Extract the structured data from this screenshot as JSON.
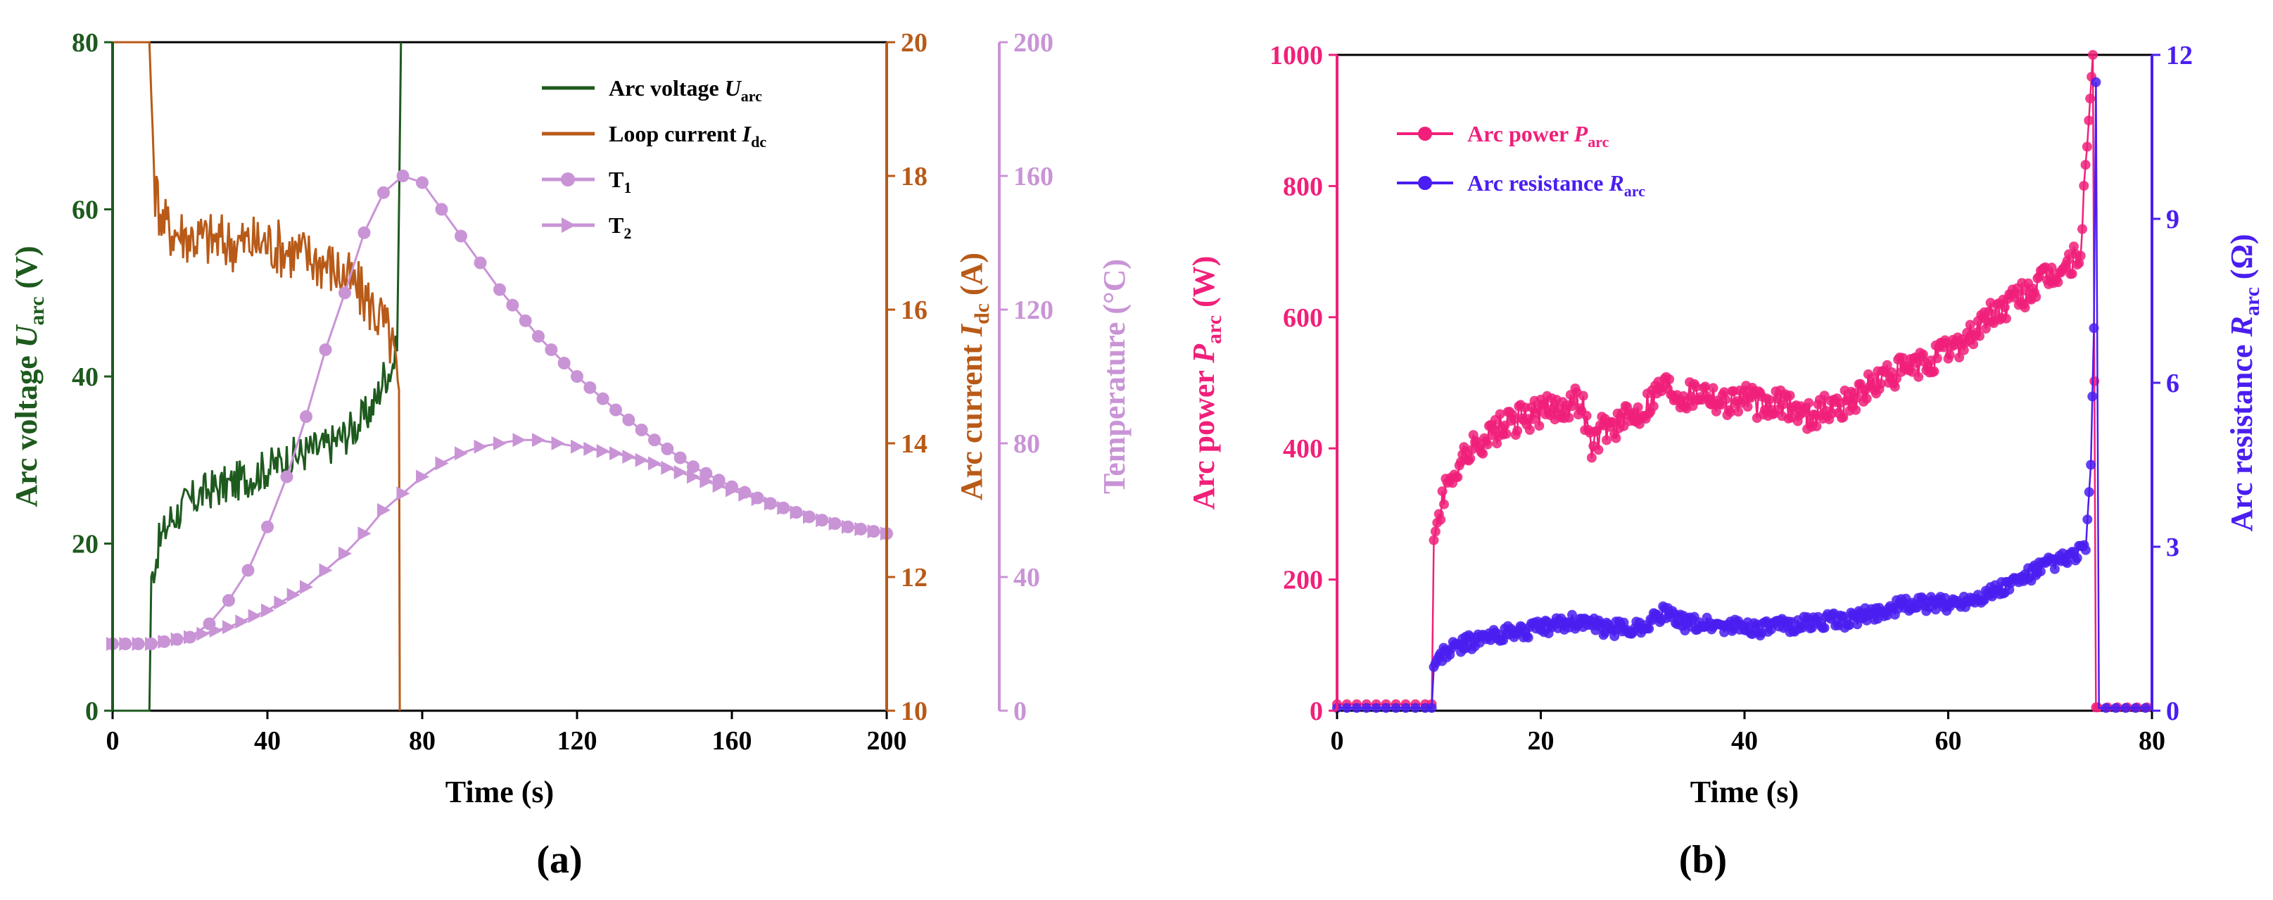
{
  "colors": {
    "voltage": "#1e5a1e",
    "current": "#b85a18",
    "temperature": "#c994d6",
    "power": "#f0207a",
    "resistance": "#4a1ef0",
    "axis": "#000000"
  },
  "chart_data": [
    {
      "panel": "(a)",
      "type": "line",
      "xlabel": "Time (s)",
      "xlim": [
        0,
        200
      ],
      "xticks": [
        "0",
        "40",
        "80",
        "120",
        "160",
        "200"
      ],
      "axes": {
        "left": {
          "label_main": "Arc voltage ",
          "label_sym": "U",
          "label_sub": "arc",
          "label_unit": " (V)",
          "ylim": [
            0,
            80
          ],
          "ticks": [
            "0",
            "20",
            "40",
            "60",
            "80"
          ]
        },
        "right1": {
          "label_main": "Arc current ",
          "label_sym": "I",
          "label_sub": "dc",
          "label_unit": " (A)",
          "ylim": [
            10,
            20
          ],
          "ticks": [
            "10",
            "12",
            "14",
            "16",
            "18",
            "20"
          ]
        },
        "right2": {
          "label": "Temperature (°C)",
          "ylim": [
            0,
            200
          ],
          "ticks": [
            "0",
            "40",
            "80",
            "120",
            "160",
            "200"
          ]
        }
      },
      "legend": [
        {
          "text": "Arc voltage ",
          "sym": "U",
          "sub": "arc"
        },
        {
          "text": "Loop current ",
          "sym": "I",
          "sub": "dc"
        },
        {
          "text": "T",
          "sym": "",
          "sub": "1"
        },
        {
          "text": "T",
          "sym": "",
          "sub": "2"
        }
      ],
      "series": [
        {
          "name": "Arc voltage Uarc",
          "axis": "left",
          "x": [
            0,
            9.5,
            10,
            12,
            15,
            20,
            25,
            30,
            35,
            40,
            45,
            50,
            55,
            60,
            65,
            68,
            70,
            72,
            73.5,
            74,
            74.5
          ],
          "y": [
            0,
            0,
            16,
            20,
            23,
            25,
            26.5,
            27,
            28,
            29,
            30,
            31,
            31.5,
            33,
            35,
            37,
            40,
            41,
            43,
            60,
            80
          ]
        },
        {
          "name": "Loop current Idc",
          "axis": "right1",
          "x": [
            0,
            9.5,
            10,
            11,
            13,
            15,
            20,
            25,
            30,
            35,
            40,
            45,
            50,
            55,
            60,
            65,
            70,
            72,
            73,
            74,
            74.2
          ],
          "y": [
            20,
            20,
            19.2,
            17.8,
            17.3,
            17.2,
            17.1,
            17.05,
            17.0,
            17.0,
            17.0,
            16.9,
            16.8,
            16.7,
            16.5,
            16.2,
            15.8,
            15.5,
            15.2,
            14.8,
            10
          ]
        },
        {
          "name": "T1",
          "axis": "right2",
          "x": [
            0,
            10,
            20,
            25,
            30,
            35,
            40,
            45,
            50,
            55,
            60,
            65,
            70,
            75,
            80,
            85,
            90,
            95,
            100,
            110,
            120,
            130,
            140,
            150,
            160,
            170,
            180,
            190,
            200
          ],
          "y": [
            20,
            20,
            22,
            26,
            33,
            42,
            55,
            70,
            88,
            108,
            125,
            143,
            155,
            160,
            158,
            150,
            142,
            134,
            126,
            112,
            100,
            90,
            81,
            73,
            67,
            62,
            58,
            55,
            53
          ]
        },
        {
          "name": "T2",
          "axis": "right2",
          "x": [
            0,
            10,
            20,
            30,
            40,
            50,
            55,
            60,
            65,
            70,
            75,
            80,
            85,
            90,
            95,
            100,
            105,
            110,
            115,
            120,
            130,
            140,
            150,
            160,
            170,
            180,
            190,
            200
          ],
          "y": [
            20,
            20,
            22,
            25,
            30,
            37,
            42,
            47,
            53,
            60,
            65,
            70,
            74,
            77,
            79,
            80,
            81,
            81,
            80,
            79,
            77,
            74,
            70,
            66,
            62,
            58,
            55,
            53
          ]
        }
      ]
    },
    {
      "panel": "(b)",
      "type": "line",
      "xlabel": "Time (s)",
      "xlim": [
        0,
        80
      ],
      "xticks": [
        "0",
        "20",
        "40",
        "60",
        "80"
      ],
      "axes": {
        "left": {
          "label_main": "Arc power ",
          "label_sym": "P",
          "label_sub": "arc",
          "label_unit": " (W)",
          "ylim": [
            0,
            1000
          ],
          "ticks": [
            "0",
            "200",
            "400",
            "600",
            "800",
            "1000"
          ]
        },
        "right": {
          "label_main": "Arc resistance ",
          "label_sym": "R",
          "label_sub": "arc",
          "label_unit": " (Ω)",
          "ylim": [
            0,
            12
          ],
          "ticks": [
            "0",
            "3",
            "6",
            "9",
            "12"
          ]
        }
      },
      "legend": [
        {
          "text": "Arc power ",
          "sym": "P",
          "sub": "arc"
        },
        {
          "text": "Arc resistance ",
          "sym": "R",
          "sub": "arc"
        }
      ],
      "series": [
        {
          "name": "Arc power Parc",
          "axis": "left",
          "x": [
            0,
            9.3,
            9.5,
            10,
            11,
            12,
            14,
            16,
            18,
            20,
            22,
            24,
            25,
            26,
            28,
            30,
            32,
            34,
            36,
            38,
            40,
            42,
            44,
            46,
            48,
            50,
            52,
            54,
            56,
            58,
            60,
            62,
            64,
            66,
            68,
            70,
            72,
            73,
            73.8,
            74.2,
            74.5,
            75,
            80
          ],
          "y": [
            10,
            10,
            260,
            300,
            350,
            380,
            410,
            430,
            445,
            455,
            465,
            475,
            400,
            430,
            440,
            460,
            500,
            480,
            490,
            470,
            480,
            460,
            470,
            450,
            460,
            470,
            490,
            510,
            520,
            530,
            550,
            570,
            600,
            620,
            640,
            660,
            680,
            700,
            900,
            1000,
            5,
            5,
            5
          ]
        },
        {
          "name": "Arc resistance Rarc",
          "axis": "right",
          "x": [
            0,
            9.3,
            9.5,
            10,
            12,
            14,
            16,
            18,
            20,
            22,
            24,
            26,
            28,
            30,
            32,
            34,
            36,
            38,
            40,
            42,
            44,
            46,
            48,
            50,
            52,
            54,
            56,
            58,
            60,
            62,
            64,
            66,
            68,
            70,
            72,
            73.5,
            74,
            74.3,
            74.5,
            74.8,
            75,
            80
          ],
          "y": [
            0.05,
            0.05,
            0.8,
            1.0,
            1.2,
            1.3,
            1.4,
            1.45,
            1.5,
            1.6,
            1.65,
            1.5,
            1.5,
            1.55,
            1.8,
            1.6,
            1.6,
            1.55,
            1.55,
            1.5,
            1.55,
            1.6,
            1.65,
            1.65,
            1.75,
            1.85,
            1.95,
            1.95,
            1.95,
            2.05,
            2.15,
            2.3,
            2.5,
            2.7,
            2.8,
            3.0,
            4.5,
            7,
            11.5,
            0.05,
            0.05,
            0.05
          ]
        }
      ]
    }
  ]
}
